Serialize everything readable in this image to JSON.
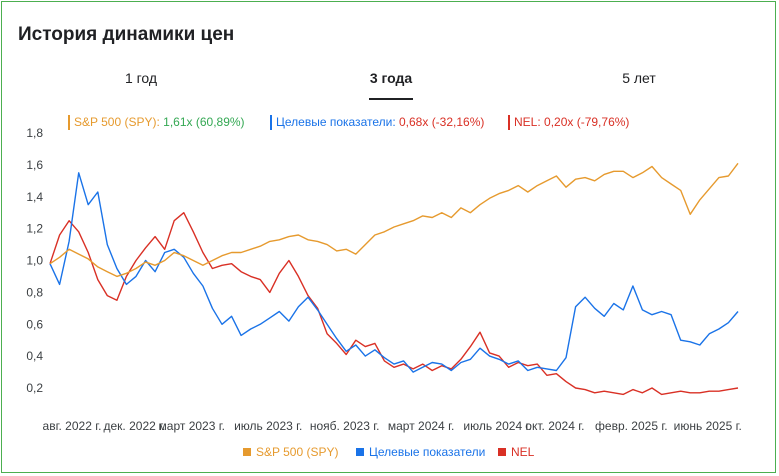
{
  "card": {
    "title": "История динамики цен"
  },
  "tabs": [
    {
      "label": "1 год",
      "active": false
    },
    {
      "label": "3 года",
      "active": true
    },
    {
      "label": "5 лет",
      "active": false
    }
  ],
  "ratio_legend": [
    {
      "name": "S&P 500 (SPY):",
      "value": "1,61x (60,89%)",
      "color": "#e69a2e",
      "value_color": "#34a853"
    },
    {
      "name": "Целевые показатели:",
      "value": "0,68x (-32,16%)",
      "color": "#1a73e8",
      "value_color": "#d93025"
    },
    {
      "name": "NEL:",
      "value": "0,20x (-79,76%)",
      "color": "#d93025",
      "value_color": "#d93025"
    }
  ],
  "bottom_legend": [
    {
      "label": "S&P 500 (SPY)",
      "color": "#e69a2e"
    },
    {
      "label": "Целевые показатели",
      "color": "#1a73e8"
    },
    {
      "label": "NEL",
      "color": "#d93025"
    }
  ],
  "chart_data": {
    "type": "line",
    "title": "История динамики цен",
    "ylim": [
      0.1,
      1.8
    ],
    "y_ticks": [
      0.2,
      0.4,
      0.6,
      0.8,
      1.0,
      1.2,
      1.4,
      1.6,
      1.8
    ],
    "y_tick_labels": [
      "0,2",
      "0,4",
      "0,6",
      "0,8",
      "1,0",
      "1,2",
      "1,4",
      "1,6",
      "1,8"
    ],
    "x_tick_labels": [
      "авг. 2022 г.",
      "дек. 2022 г.",
      "март 2023 г.",
      "июль 2023 г.",
      "нояб. 2023 г.",
      "март 2024 г.",
      "июль 2024 г.",
      "окт. 2024 г.",
      "февр. 2025 г.",
      "июнь 2025 г."
    ],
    "x_tick_positions": [
      0,
      4,
      7,
      11,
      15,
      19,
      23,
      26,
      30,
      34
    ],
    "x_range": [
      0,
      36
    ],
    "grid": false,
    "legend": "top-left",
    "series": [
      {
        "name": "S&P 500 (SPY)",
        "color": "#e69a2e",
        "x": [
          0,
          0.5,
          1,
          1.5,
          2,
          2.5,
          3,
          3.5,
          4,
          4.5,
          5,
          5.5,
          6,
          6.5,
          7,
          7.5,
          8,
          8.5,
          9,
          9.5,
          10,
          10.5,
          11,
          11.5,
          12,
          12.5,
          13,
          13.5,
          14,
          14.5,
          15,
          15.5,
          16,
          16.5,
          17,
          17.5,
          18,
          18.5,
          19,
          19.5,
          20,
          20.5,
          21,
          21.5,
          22,
          22.5,
          23,
          23.5,
          24,
          24.5,
          25,
          25.5,
          26,
          26.5,
          27,
          27.5,
          28,
          28.5,
          29,
          29.5,
          30,
          30.5,
          31,
          31.5,
          32,
          32.5,
          33,
          33.5,
          34,
          34.5,
          35,
          35.5,
          36
        ],
        "values": [
          0.98,
          1.02,
          1.07,
          1.04,
          1.01,
          0.96,
          0.93,
          0.9,
          0.92,
          0.95,
          0.99,
          0.97,
          1.0,
          1.05,
          1.03,
          1.0,
          0.97,
          1.0,
          1.03,
          1.05,
          1.05,
          1.07,
          1.09,
          1.12,
          1.13,
          1.15,
          1.16,
          1.13,
          1.12,
          1.1,
          1.06,
          1.07,
          1.04,
          1.1,
          1.16,
          1.18,
          1.21,
          1.23,
          1.25,
          1.28,
          1.27,
          1.3,
          1.27,
          1.33,
          1.3,
          1.35,
          1.39,
          1.42,
          1.44,
          1.47,
          1.43,
          1.47,
          1.5,
          1.53,
          1.46,
          1.51,
          1.52,
          1.5,
          1.54,
          1.56,
          1.56,
          1.52,
          1.55,
          1.59,
          1.52,
          1.48,
          1.44,
          1.29,
          1.38,
          1.45,
          1.52,
          1.53,
          1.61
        ]
      },
      {
        "name": "Целевые показатели",
        "color": "#1a73e8",
        "x": [
          0,
          0.5,
          1,
          1.5,
          2,
          2.5,
          3,
          3.5,
          4,
          4.5,
          5,
          5.5,
          6,
          6.5,
          7,
          7.5,
          8,
          8.5,
          9,
          9.5,
          10,
          10.5,
          11,
          11.5,
          12,
          12.5,
          13,
          13.5,
          14,
          14.5,
          15,
          15.5,
          16,
          16.5,
          17,
          17.5,
          18,
          18.5,
          19,
          19.5,
          20,
          20.5,
          21,
          21.5,
          22,
          22.5,
          23,
          23.5,
          24,
          24.5,
          25,
          25.5,
          26,
          26.5,
          27,
          27.5,
          28,
          28.5,
          29,
          29.5,
          30,
          30.5,
          31,
          31.5,
          32,
          32.5,
          33,
          33.5,
          34,
          34.5,
          35,
          35.5,
          36
        ],
        "values": [
          0.98,
          0.85,
          1.12,
          1.55,
          1.35,
          1.43,
          1.1,
          0.95,
          0.85,
          0.9,
          1.0,
          0.93,
          1.05,
          1.07,
          1.02,
          0.92,
          0.84,
          0.7,
          0.6,
          0.65,
          0.53,
          0.57,
          0.6,
          0.64,
          0.68,
          0.62,
          0.71,
          0.77,
          0.69,
          0.6,
          0.51,
          0.43,
          0.47,
          0.4,
          0.44,
          0.39,
          0.35,
          0.37,
          0.3,
          0.33,
          0.36,
          0.35,
          0.31,
          0.36,
          0.38,
          0.45,
          0.4,
          0.38,
          0.35,
          0.37,
          0.31,
          0.33,
          0.32,
          0.31,
          0.39,
          0.71,
          0.77,
          0.7,
          0.65,
          0.73,
          0.69,
          0.84,
          0.69,
          0.66,
          0.68,
          0.66,
          0.5,
          0.49,
          0.47,
          0.54,
          0.57,
          0.61,
          0.68
        ]
      },
      {
        "name": "NEL",
        "color": "#d93025",
        "x": [
          0,
          0.5,
          1,
          1.5,
          2,
          2.5,
          3,
          3.5,
          4,
          4.5,
          5,
          5.5,
          6,
          6.5,
          7,
          7.5,
          8,
          8.5,
          9,
          9.5,
          10,
          10.5,
          11,
          11.5,
          12,
          12.5,
          13,
          13.5,
          14,
          14.5,
          15,
          15.5,
          16,
          16.5,
          17,
          17.5,
          18,
          18.5,
          19,
          19.5,
          20,
          20.5,
          21,
          21.5,
          22,
          22.5,
          23,
          23.5,
          24,
          24.5,
          25,
          25.5,
          26,
          26.5,
          27,
          27.5,
          28,
          28.5,
          29,
          29.5,
          30,
          30.5,
          31,
          31.5,
          32,
          32.5,
          33,
          33.5,
          34,
          34.5,
          35,
          35.5,
          36
        ],
        "values": [
          0.98,
          1.16,
          1.25,
          1.18,
          1.05,
          0.88,
          0.78,
          0.75,
          0.9,
          1.0,
          1.08,
          1.15,
          1.07,
          1.25,
          1.3,
          1.18,
          1.05,
          0.95,
          0.97,
          0.98,
          0.93,
          0.9,
          0.88,
          0.8,
          0.92,
          1.0,
          0.9,
          0.78,
          0.7,
          0.54,
          0.48,
          0.41,
          0.5,
          0.46,
          0.48,
          0.37,
          0.33,
          0.35,
          0.32,
          0.35,
          0.31,
          0.34,
          0.32,
          0.38,
          0.46,
          0.55,
          0.42,
          0.4,
          0.33,
          0.36,
          0.34,
          0.35,
          0.28,
          0.29,
          0.24,
          0.2,
          0.19,
          0.17,
          0.18,
          0.17,
          0.16,
          0.19,
          0.17,
          0.2,
          0.16,
          0.17,
          0.18,
          0.17,
          0.17,
          0.18,
          0.18,
          0.19,
          0.2
        ]
      }
    ]
  }
}
